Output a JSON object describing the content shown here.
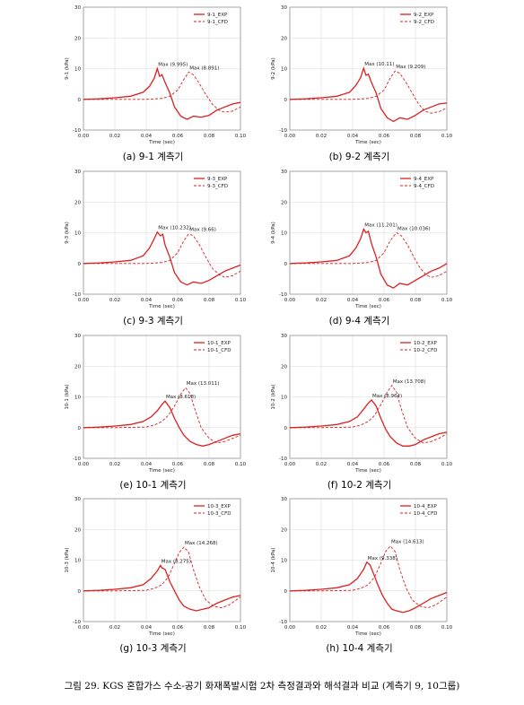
{
  "figure_caption": "그림 29. KGS 혼합가스 수소-공기 화재폭발시험 2차 측정결과와 해석결과 비교 (계측기 9, 10그룹)",
  "colors": {
    "series": "#dd1f1f",
    "grid": "#d9d9d9",
    "axis": "#888888"
  },
  "chart_data": [
    {
      "type": "line",
      "caption": "(a) 9-1 계측기",
      "xlabel": "Time (sec)",
      "ylabel": "9-1 (kPa)",
      "xlim": [
        0,
        0.1
      ],
      "ylim": [
        -10,
        30
      ],
      "xticks": [
        "0.00",
        "0.02",
        "0.04",
        "0.06",
        "0.08",
        "0.10"
      ],
      "yticks": [
        "-10",
        "0",
        "10",
        "20",
        "30"
      ],
      "grid": true,
      "legend": "top-right",
      "series": [
        {
          "name": "9-1_EXP",
          "style": "solid",
          "x": [
            0,
            0.01,
            0.02,
            0.03,
            0.038,
            0.042,
            0.045,
            0.047,
            0.0485,
            0.05,
            0.052,
            0.055,
            0.058,
            0.062,
            0.066,
            0.07,
            0.075,
            0.08,
            0.085,
            0.09,
            0.095,
            0.1
          ],
          "y": [
            0,
            0.2,
            0.5,
            1.0,
            2.3,
            4.2,
            6.8,
            9.995,
            7.5,
            8.0,
            5.5,
            2.0,
            -2.5,
            -5.5,
            -6.5,
            -5.5,
            -5.8,
            -5.2,
            -3.5,
            -2.5,
            -1.5,
            -1.0
          ]
        },
        {
          "name": "9-1_CFD",
          "style": "dashed",
          "x": [
            0,
            0.02,
            0.04,
            0.05,
            0.055,
            0.06,
            0.064,
            0.067,
            0.07,
            0.074,
            0.078,
            0.082,
            0.086,
            0.09,
            0.095,
            0.1
          ],
          "y": [
            0,
            0,
            0,
            0.3,
            1.0,
            3.0,
            6.5,
            8.891,
            8.0,
            5.0,
            1.5,
            -1.5,
            -3.5,
            -4.2,
            -3.8,
            -2.5
          ]
        }
      ],
      "annotations": [
        {
          "text": "Max (9.995)",
          "x": 0.047,
          "y": 9.995
        },
        {
          "text": "Max (8.891)",
          "x": 0.067,
          "y": 8.891
        }
      ]
    },
    {
      "type": "line",
      "caption": "(b) 9-2 계측기",
      "xlabel": "Time (sec)",
      "ylabel": "9-2 (kPa)",
      "xlim": [
        0,
        0.1
      ],
      "ylim": [
        -10,
        30
      ],
      "xticks": [
        "0.00",
        "0.02",
        "0.04",
        "0.06",
        "0.08",
        "0.10"
      ],
      "yticks": [
        "-10",
        "0",
        "10",
        "20",
        "30"
      ],
      "grid": true,
      "legend": "top-right",
      "series": [
        {
          "name": "9-2_EXP",
          "style": "solid",
          "x": [
            0,
            0.01,
            0.02,
            0.03,
            0.038,
            0.042,
            0.045,
            0.047,
            0.0485,
            0.05,
            0.052,
            0.055,
            0.058,
            0.062,
            0.066,
            0.07,
            0.075,
            0.08,
            0.085,
            0.09,
            0.095,
            0.1
          ],
          "y": [
            0,
            0.2,
            0.5,
            1.0,
            2.3,
            4.5,
            7.0,
            10.11,
            7.8,
            8.2,
            5.5,
            2.0,
            -3.0,
            -6.0,
            -7.2,
            -6.0,
            -6.5,
            -5.2,
            -3.5,
            -2.5,
            -1.5,
            -1.2
          ]
        },
        {
          "name": "9-2_CFD",
          "style": "dashed",
          "x": [
            0,
            0.02,
            0.04,
            0.05,
            0.055,
            0.06,
            0.064,
            0.067,
            0.07,
            0.074,
            0.078,
            0.082,
            0.086,
            0.09,
            0.095,
            0.1
          ],
          "y": [
            0,
            0,
            0,
            0.3,
            1.0,
            3.0,
            7.0,
            9.209,
            8.5,
            5.5,
            2.0,
            -1.5,
            -3.8,
            -4.5,
            -4.0,
            -2.8
          ]
        }
      ],
      "annotations": [
        {
          "text": "Max (10.11)",
          "x": 0.047,
          "y": 10.11
        },
        {
          "text": "Max (9.209)",
          "x": 0.067,
          "y": 9.209
        }
      ]
    },
    {
      "type": "line",
      "caption": "(c) 9-3 계측기",
      "xlabel": "Time (sec)",
      "ylabel": "9-3 (kPa)",
      "xlim": [
        0,
        0.1
      ],
      "ylim": [
        -10,
        30
      ],
      "xticks": [
        "0.00",
        "0.02",
        "0.04",
        "0.06",
        "0.08",
        "0.10"
      ],
      "yticks": [
        "-10",
        "0",
        "10",
        "20",
        "30"
      ],
      "grid": true,
      "legend": "top-right",
      "series": [
        {
          "name": "9-3_EXP",
          "style": "solid",
          "x": [
            0,
            0.01,
            0.02,
            0.03,
            0.038,
            0.042,
            0.045,
            0.047,
            0.049,
            0.0505,
            0.052,
            0.055,
            0.058,
            0.062,
            0.066,
            0.07,
            0.075,
            0.08,
            0.085,
            0.09,
            0.095,
            0.1
          ],
          "y": [
            0,
            0.2,
            0.5,
            1.0,
            2.5,
            5.0,
            8.0,
            10.232,
            9.0,
            9.5,
            6.0,
            2.0,
            -3.0,
            -6.0,
            -7.0,
            -6.0,
            -6.5,
            -5.5,
            -4.0,
            -2.5,
            -1.5,
            -0.5
          ]
        },
        {
          "name": "9-3_CFD",
          "style": "dashed",
          "x": [
            0,
            0.02,
            0.04,
            0.05,
            0.055,
            0.06,
            0.064,
            0.067,
            0.07,
            0.074,
            0.078,
            0.082,
            0.086,
            0.09,
            0.095,
            0.1
          ],
          "y": [
            0,
            0,
            0,
            0.3,
            1.0,
            3.5,
            7.5,
            9.66,
            9.0,
            6.0,
            2.0,
            -1.5,
            -3.5,
            -4.5,
            -4.0,
            -2.5
          ]
        }
      ],
      "annotations": [
        {
          "text": "Max (10.232)",
          "x": 0.047,
          "y": 10.232
        },
        {
          "text": "Max (9.66)",
          "x": 0.067,
          "y": 9.66
        }
      ]
    },
    {
      "type": "line",
      "caption": "(d) 9-4 계측기",
      "xlabel": "Time (sec)",
      "ylabel": "9-4 (kPa)",
      "xlim": [
        0,
        0.1
      ],
      "ylim": [
        -10,
        30
      ],
      "xticks": [
        "0.00",
        "0.02",
        "0.04",
        "0.06",
        "0.08",
        "0.10"
      ],
      "yticks": [
        "-10",
        "0",
        "10",
        "20",
        "30"
      ],
      "grid": true,
      "legend": "top-right",
      "series": [
        {
          "name": "9-4_EXP",
          "style": "solid",
          "x": [
            0,
            0.01,
            0.02,
            0.03,
            0.038,
            0.042,
            0.045,
            0.047,
            0.0485,
            0.05,
            0.052,
            0.055,
            0.058,
            0.062,
            0.066,
            0.07,
            0.075,
            0.08,
            0.085,
            0.09,
            0.095,
            0.1
          ],
          "y": [
            0,
            0.2,
            0.5,
            1.0,
            2.5,
            5.0,
            8.0,
            11.201,
            10.0,
            10.5,
            6.5,
            2.0,
            -3.5,
            -7.0,
            -8.0,
            -6.5,
            -7.0,
            -5.5,
            -4.0,
            -2.5,
            -1.5,
            0.0
          ]
        },
        {
          "name": "9-4_CFD",
          "style": "dashed",
          "x": [
            0,
            0.02,
            0.04,
            0.05,
            0.055,
            0.06,
            0.064,
            0.068,
            0.071,
            0.075,
            0.079,
            0.083,
            0.087,
            0.09,
            0.095,
            0.1
          ],
          "y": [
            0,
            0,
            0,
            0.3,
            1.0,
            3.5,
            7.5,
            10.036,
            9.0,
            6.0,
            2.0,
            -1.5,
            -3.8,
            -4.5,
            -4.0,
            -2.5
          ]
        }
      ],
      "annotations": [
        {
          "text": "Max (11.201)",
          "x": 0.047,
          "y": 11.201
        },
        {
          "text": "Max (10.036)",
          "x": 0.068,
          "y": 10.036
        }
      ]
    },
    {
      "type": "line",
      "caption": "(e) 10-1 계측기",
      "xlabel": "Time (sec)",
      "ylabel": "10-1 (kPa)",
      "xlim": [
        0,
        0.1
      ],
      "ylim": [
        -10,
        30
      ],
      "xticks": [
        "0.00",
        "0.02",
        "0.04",
        "0.06",
        "0.08",
        "0.10"
      ],
      "yticks": [
        "-10",
        "0",
        "10",
        "20",
        "30"
      ],
      "grid": true,
      "legend": "top-right",
      "series": [
        {
          "name": "10-1_EXP",
          "style": "solid",
          "x": [
            0,
            0.01,
            0.02,
            0.03,
            0.038,
            0.043,
            0.047,
            0.05,
            0.052,
            0.055,
            0.058,
            0.061,
            0.064,
            0.068,
            0.072,
            0.076,
            0.08,
            0.085,
            0.09,
            0.095,
            0.1
          ],
          "y": [
            0,
            0.2,
            0.5,
            1.0,
            2.0,
            3.5,
            5.5,
            7.5,
            8.618,
            6.5,
            3.0,
            0.0,
            -2.5,
            -4.5,
            -5.5,
            -6.0,
            -5.5,
            -4.5,
            -3.5,
            -2.5,
            -2.0
          ]
        },
        {
          "name": "10-1_CFD",
          "style": "dashed",
          "x": [
            0,
            0.02,
            0.04,
            0.045,
            0.05,
            0.054,
            0.058,
            0.062,
            0.065,
            0.068,
            0.071,
            0.075,
            0.08,
            0.085,
            0.09,
            0.095,
            0.1
          ],
          "y": [
            0,
            0,
            0.2,
            0.8,
            2.0,
            4.0,
            7.0,
            11.0,
            13.011,
            11.0,
            6.0,
            0.0,
            -3.5,
            -5.0,
            -4.5,
            -3.5,
            -2.5
          ]
        }
      ],
      "annotations": [
        {
          "text": "Max (13.011)",
          "x": 0.065,
          "y": 13.011
        },
        {
          "text": "Max (8.618)",
          "x": 0.052,
          "y": 8.618
        }
      ]
    },
    {
      "type": "line",
      "caption": "(f) 10-2 계측기",
      "xlabel": "Time (sec)",
      "ylabel": "10-2 (kPa)",
      "xlim": [
        0,
        0.1
      ],
      "ylim": [
        -10,
        30
      ],
      "xticks": [
        "0.00",
        "0.02",
        "0.04",
        "0.06",
        "0.08",
        "0.10"
      ],
      "yticks": [
        "-10",
        "0",
        "10",
        "20",
        "30"
      ],
      "grid": true,
      "legend": "top-right",
      "series": [
        {
          "name": "10-2_EXP",
          "style": "solid",
          "x": [
            0,
            0.01,
            0.02,
            0.03,
            0.038,
            0.043,
            0.047,
            0.05,
            0.052,
            0.055,
            0.058,
            0.061,
            0.064,
            0.068,
            0.072,
            0.076,
            0.08,
            0.085,
            0.09,
            0.095,
            0.1
          ],
          "y": [
            0,
            0.2,
            0.5,
            1.0,
            2.0,
            3.5,
            6.0,
            8.0,
            8.964,
            7.0,
            3.0,
            -0.5,
            -3.0,
            -5.0,
            -6.0,
            -6.0,
            -5.5,
            -4.0,
            -3.0,
            -2.0,
            -1.5
          ]
        },
        {
          "name": "10-2_CFD",
          "style": "dashed",
          "x": [
            0,
            0.02,
            0.04,
            0.045,
            0.05,
            0.054,
            0.058,
            0.062,
            0.065,
            0.068,
            0.071,
            0.075,
            0.08,
            0.085,
            0.09,
            0.095,
            0.1
          ],
          "y": [
            0,
            0,
            0.2,
            0.8,
            2.0,
            4.0,
            7.5,
            11.5,
            13.708,
            11.5,
            6.0,
            0.0,
            -3.5,
            -5.0,
            -4.5,
            -3.5,
            -2.0
          ]
        }
      ],
      "annotations": [
        {
          "text": "Max (13.708)",
          "x": 0.065,
          "y": 13.708
        },
        {
          "text": "Max (8.964)",
          "x": 0.052,
          "y": 8.964
        }
      ]
    },
    {
      "type": "line",
      "caption": "(g) 10-3 계측기",
      "xlabel": "Time (sec)",
      "ylabel": "10-3 (kPa)",
      "xlim": [
        0,
        0.1
      ],
      "ylim": [
        -10,
        30
      ],
      "xticks": [
        "0.00",
        "0.02",
        "0.04",
        "0.06",
        "0.08",
        "0.10"
      ],
      "yticks": [
        "-10",
        "0",
        "10",
        "20",
        "30"
      ],
      "grid": true,
      "legend": "top-right",
      "series": [
        {
          "name": "10-3_EXP",
          "style": "solid",
          "x": [
            0,
            0.01,
            0.02,
            0.03,
            0.038,
            0.043,
            0.047,
            0.049,
            0.05,
            0.052,
            0.055,
            0.058,
            0.061,
            0.064,
            0.068,
            0.072,
            0.076,
            0.08,
            0.085,
            0.09,
            0.095,
            0.1
          ],
          "y": [
            0,
            0.2,
            0.5,
            1.0,
            2.0,
            4.0,
            6.5,
            8.275,
            7.5,
            7.0,
            3.0,
            0.0,
            -3.0,
            -5.0,
            -6.0,
            -6.5,
            -6.0,
            -5.5,
            -4.0,
            -3.0,
            -2.0,
            -1.5
          ]
        },
        {
          "name": "10-3_CFD",
          "style": "dashed",
          "x": [
            0,
            0.02,
            0.04,
            0.045,
            0.05,
            0.054,
            0.058,
            0.061,
            0.064,
            0.067,
            0.07,
            0.074,
            0.078,
            0.083,
            0.088,
            0.093,
            0.1
          ],
          "y": [
            0,
            0,
            0.2,
            0.8,
            2.0,
            4.5,
            9.0,
            12.5,
            14.268,
            12.5,
            7.0,
            1.0,
            -3.0,
            -5.0,
            -5.5,
            -4.5,
            -2.0
          ]
        }
      ],
      "annotations": [
        {
          "text": "Max (14.268)",
          "x": 0.064,
          "y": 14.268
        },
        {
          "text": "Max (8.275)",
          "x": 0.049,
          "y": 8.275
        }
      ]
    },
    {
      "type": "line",
      "caption": "(h) 10-4 계측기",
      "xlabel": "Time (sec)",
      "ylabel": "10-4 (kPa)",
      "xlim": [
        0,
        0.1
      ],
      "ylim": [
        -10,
        30
      ],
      "xticks": [
        "0.00",
        "0.02",
        "0.04",
        "0.06",
        "0.08",
        "0.10"
      ],
      "yticks": [
        "-10",
        "0",
        "10",
        "20",
        "30"
      ],
      "grid": true,
      "legend": "top-right",
      "series": [
        {
          "name": "10-4_EXP",
          "style": "solid",
          "x": [
            0,
            0.01,
            0.02,
            0.03,
            0.038,
            0.043,
            0.047,
            0.049,
            0.051,
            0.053,
            0.056,
            0.059,
            0.062,
            0.065,
            0.068,
            0.072,
            0.076,
            0.08,
            0.085,
            0.09,
            0.095,
            0.1
          ],
          "y": [
            0,
            0.2,
            0.5,
            1.0,
            2.0,
            4.0,
            7.0,
            9.338,
            8.5,
            6.0,
            2.0,
            -1.5,
            -4.0,
            -6.0,
            -6.5,
            -7.0,
            -6.5,
            -5.5,
            -4.0,
            -2.5,
            -1.5,
            -0.5
          ]
        },
        {
          "name": "10-4_CFD",
          "style": "dashed",
          "x": [
            0,
            0.02,
            0.04,
            0.045,
            0.05,
            0.054,
            0.058,
            0.061,
            0.064,
            0.067,
            0.07,
            0.074,
            0.078,
            0.083,
            0.088,
            0.093,
            0.1
          ],
          "y": [
            0,
            0,
            0.2,
            0.8,
            2.0,
            4.5,
            9.0,
            12.8,
            14.613,
            12.8,
            7.0,
            1.0,
            -3.0,
            -5.0,
            -5.5,
            -4.5,
            -2.0
          ]
        }
      ],
      "annotations": [
        {
          "text": "Max (14.613)",
          "x": 0.064,
          "y": 14.613
        },
        {
          "text": "Max (9.338)",
          "x": 0.049,
          "y": 9.338
        }
      ]
    }
  ]
}
